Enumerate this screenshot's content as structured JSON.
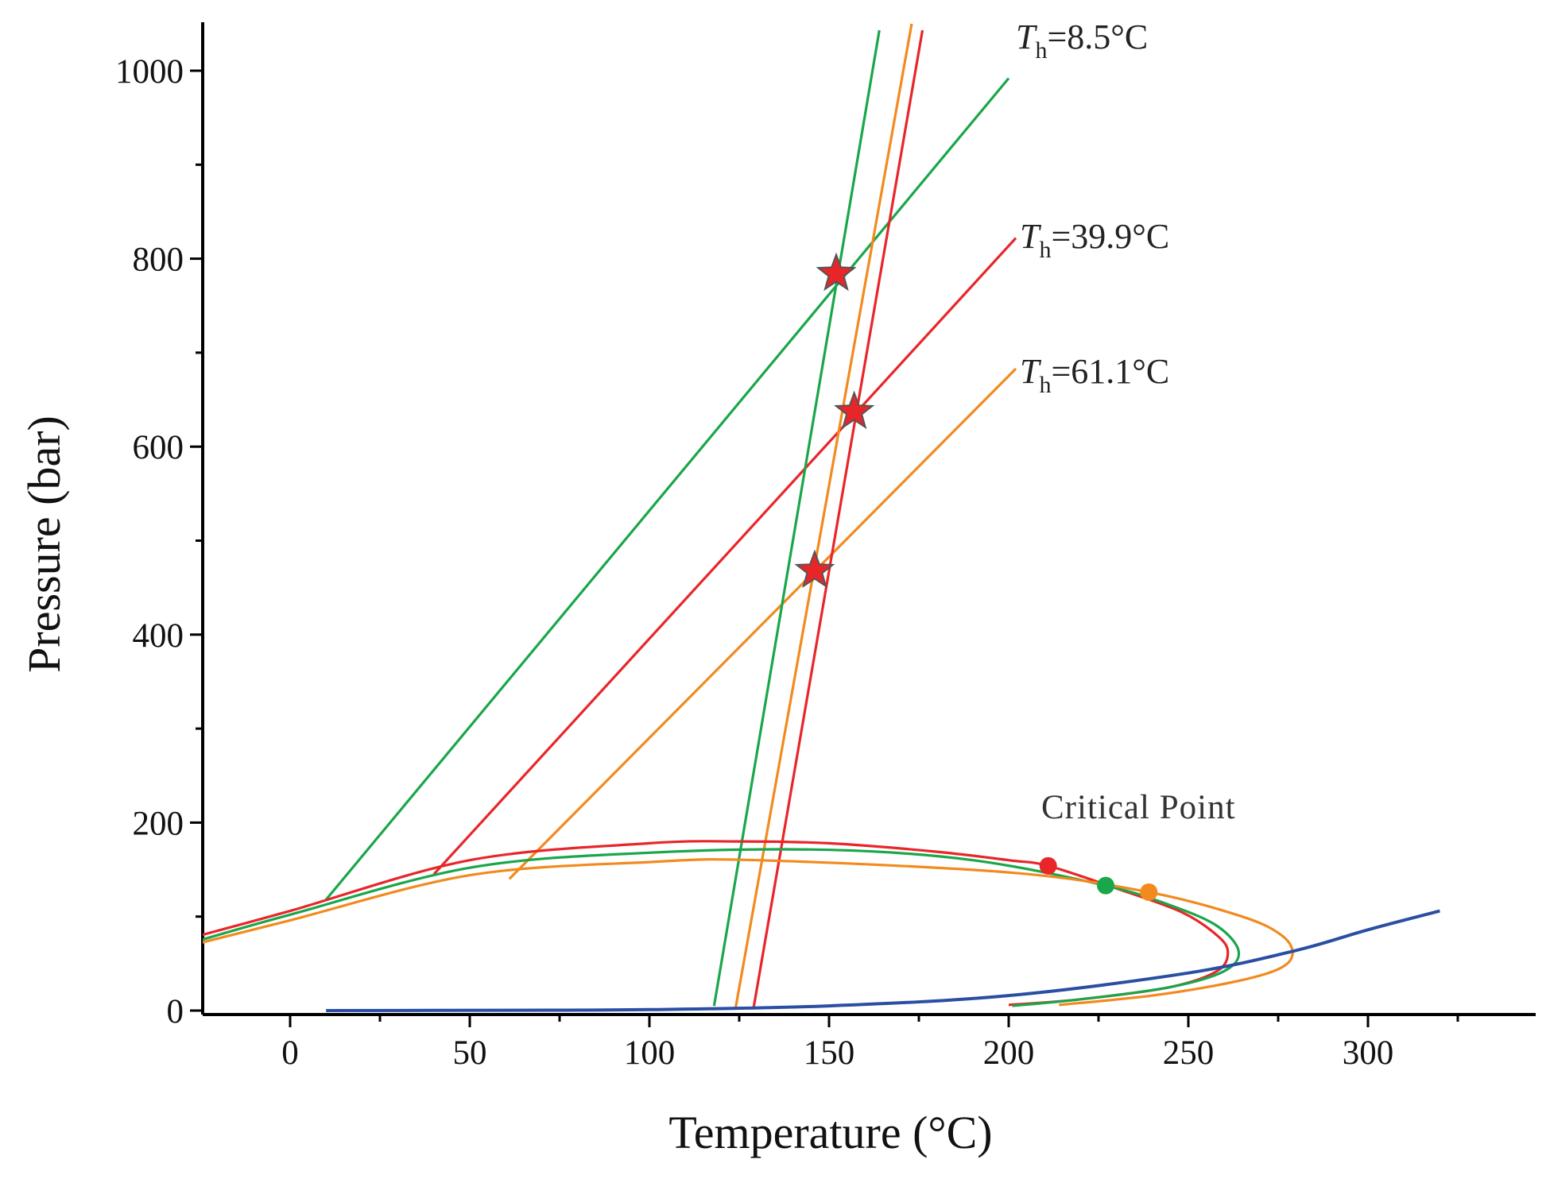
{
  "chart_data": {
    "type": "line",
    "xlabel": "Temperature (°C)",
    "ylabel": "Pressure (bar)",
    "xlim": [
      -25,
      345
    ],
    "ylim": [
      -5,
      1050
    ],
    "xticks": [
      0,
      50,
      100,
      150,
      200,
      250,
      300
    ],
    "yticks": [
      0,
      200,
      400,
      600,
      800,
      1000
    ],
    "grid": false,
    "colors": {
      "green": "#1aa64a",
      "red": "#e8262a",
      "orange": "#f28a1e",
      "blue": "#2a4ea3",
      "star_fill": "#e8262a",
      "star_stroke": "#555555"
    },
    "series": [
      {
        "name": "isochore-Th-8.5-high",
        "color": "green",
        "points": [
          [
            10,
            118
          ],
          [
            200,
            992
          ]
        ]
      },
      {
        "name": "isochore-Th-39.9-high",
        "color": "red",
        "points": [
          [
            40,
            145
          ],
          [
            202,
            822
          ]
        ]
      },
      {
        "name": "isochore-Th-61.1-high",
        "color": "orange",
        "points": [
          [
            61,
            140
          ],
          [
            202,
            683
          ]
        ]
      },
      {
        "name": "isochore-green-steep",
        "color": "green",
        "points": [
          [
            118,
            5
          ],
          [
            164,
            1043
          ]
        ]
      },
      {
        "name": "isochore-orange-steep",
        "color": "orange",
        "points": [
          [
            124,
            3
          ],
          [
            173,
            1050
          ]
        ]
      },
      {
        "name": "isochore-red-steep",
        "color": "red",
        "points": [
          [
            129,
            3
          ],
          [
            176,
            1043
          ]
        ]
      },
      {
        "name": "liquid-vapor-curve-red",
        "color": "red",
        "points": [
          [
            -25,
            80
          ],
          [
            0,
            106
          ],
          [
            50,
            160
          ],
          [
            100,
            178
          ],
          [
            125,
            180
          ],
          [
            150,
            178
          ],
          [
            180,
            169
          ],
          [
            200,
            160
          ],
          [
            211,
            154
          ],
          [
            230,
            130
          ],
          [
            248,
            105
          ],
          [
            258,
            80
          ],
          [
            261,
            62
          ],
          [
            258,
            42
          ],
          [
            245,
            25
          ],
          [
            220,
            12
          ],
          [
            200,
            6
          ]
        ]
      },
      {
        "name": "liquid-vapor-curve-green",
        "color": "green",
        "points": [
          [
            -25,
            75
          ],
          [
            0,
            102
          ],
          [
            50,
            152
          ],
          [
            100,
            168
          ],
          [
            150,
            171
          ],
          [
            190,
            160
          ],
          [
            227,
            133
          ],
          [
            245,
            112
          ],
          [
            258,
            90
          ],
          [
            264,
            63
          ],
          [
            260,
            42
          ],
          [
            245,
            25
          ],
          [
            220,
            12
          ],
          [
            201,
            5
          ]
        ]
      },
      {
        "name": "liquid-vapor-curve-orange",
        "color": "orange",
        "points": [
          [
            -25,
            72
          ],
          [
            0,
            96
          ],
          [
            50,
            144
          ],
          [
            100,
            158
          ],
          [
            130,
            160
          ],
          [
            200,
            147
          ],
          [
            239,
            126
          ],
          [
            265,
            100
          ],
          [
            276,
            80
          ],
          [
            279,
            60
          ],
          [
            275,
            44
          ],
          [
            262,
            30
          ],
          [
            240,
            16
          ],
          [
            214,
            6
          ]
        ]
      },
      {
        "name": "water-vapor-curve",
        "color": "blue",
        "points": [
          [
            10,
            0
          ],
          [
            60,
            0.3
          ],
          [
            100,
            1
          ],
          [
            150,
            5
          ],
          [
            200,
            16
          ],
          [
            250,
            40
          ],
          [
            280,
            64
          ],
          [
            300,
            86
          ],
          [
            320,
            106
          ]
        ]
      }
    ],
    "critical_points": [
      {
        "color": "red",
        "x": 211,
        "y": 154
      },
      {
        "color": "green",
        "x": 227,
        "y": 133
      },
      {
        "color": "orange",
        "x": 239,
        "y": 126
      }
    ],
    "stars": [
      {
        "x": 152,
        "y": 784
      },
      {
        "x": 157,
        "y": 637
      },
      {
        "x": 146,
        "y": 468
      }
    ],
    "annotations": [
      {
        "id": "th1",
        "T": "T",
        "h": "h",
        "value": "=8.5°C",
        "x": 203,
        "y": 1025
      },
      {
        "id": "th2",
        "T": "T",
        "h": "h",
        "value": "=39.9°C",
        "x": 203,
        "y": 800
      },
      {
        "id": "th3",
        "T": "T",
        "h": "h",
        "value": "=61.1°C",
        "x": 203,
        "y": 655
      }
    ],
    "critical_point_label": "Critical Point",
    "critical_point_label_pos": {
      "x": 210,
      "y": 210
    }
  }
}
